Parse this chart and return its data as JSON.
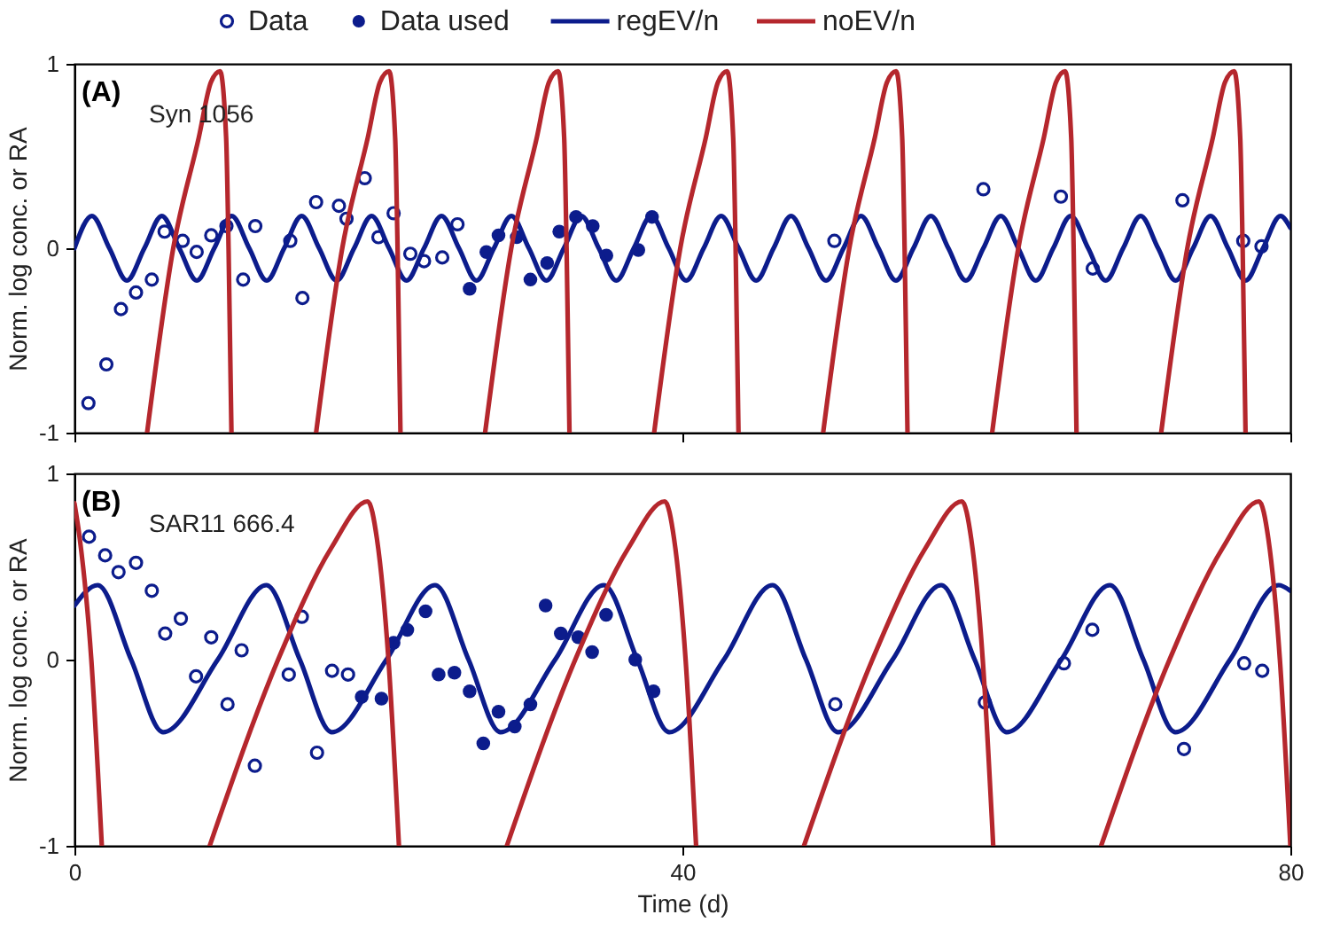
{
  "chart_data": [
    {
      "type": "line",
      "ylabel": "Norm. log conc. or RA",
      "annotations": [
        "(A)",
        "Syn 1056"
      ],
      "xlim": [
        0,
        80
      ],
      "ylim": [
        -1,
        1
      ],
      "xticks": [
        0,
        40,
        80
      ],
      "yticks": [
        -1,
        0,
        1
      ],
      "tick_labels": "y",
      "legend": "top",
      "series": [
        {
          "name": "Data",
          "type": "scatter",
          "marker": "circle",
          "color": "#0c1c8c",
          "x": [
            0.92,
            2.1,
            3.06,
            4.05,
            5.09,
            5.93,
            7.12,
            8.04,
            9.0,
            10.0,
            11.1,
            11.9,
            14.2,
            15.0,
            15.9,
            17.4,
            17.9,
            19.1,
            20.0,
            21.0,
            22.1,
            23.0,
            24.2,
            25.2,
            50.0,
            59.8,
            64.9,
            67.0,
            72.9,
            76.9,
            78.1
          ],
          "values": [
            -0.84,
            -0.63,
            -0.33,
            -0.24,
            -0.17,
            0.09,
            0.04,
            -0.02,
            0.07,
            0.12,
            -0.17,
            0.12,
            0.04,
            -0.27,
            0.25,
            0.23,
            0.16,
            0.38,
            0.06,
            0.19,
            -0.03,
            -0.07,
            -0.05,
            0.13,
            0.04,
            0.32,
            0.28,
            -0.11,
            0.26,
            0.04,
            0.01
          ]
        },
        {
          "name": "Data used",
          "type": "scatter",
          "marker": "circle",
          "color": "#0c1c8c",
          "x": [
            26.0,
            27.1,
            27.9,
            29.1,
            30.0,
            31.1,
            31.9,
            33.0,
            34.1,
            35.0,
            37.1,
            38.0
          ],
          "values": [
            -0.22,
            -0.02,
            0.07,
            0.06,
            -0.17,
            -0.08,
            0.09,
            0.17,
            0.12,
            -0.04,
            -0.01,
            0.17
          ]
        },
        {
          "name": "regEV/n",
          "color": "#0c1c8c",
          "x": [
            0,
            1.15,
            2.3,
            3.45,
            4.6,
            5.75,
            6.9,
            8.05,
            9.2,
            10.35,
            11.5,
            12.65,
            13.8,
            14.95,
            16.1,
            17.25,
            18.4,
            19.55,
            20.7,
            21.85,
            23,
            24.15,
            25.3,
            26.45,
            27.6,
            28.75,
            29.9,
            31.05,
            32.2,
            33.35,
            34.5,
            35.65,
            36.8,
            37.95,
            39.1,
            40.25,
            41.4,
            42.55,
            43.7,
            44.85,
            46,
            47.15,
            48.3,
            49.45,
            50.6,
            51.75,
            52.9,
            54.05,
            55.2,
            56.35,
            57.5,
            58.65,
            59.8,
            60.95,
            62.1,
            63.25,
            64.4,
            65.55,
            66.7,
            67.85,
            69,
            70.15,
            71.3,
            72.45,
            73.6,
            74.75,
            75.9,
            77.05,
            78.2,
            79.35,
            80
          ],
          "values": [
            0,
            0.175,
            0,
            -0.175,
            0,
            0.175,
            0,
            -0.175,
            0,
            0.175,
            0,
            -0.175,
            0,
            0.175,
            0,
            -0.175,
            0,
            0.175,
            0,
            -0.175,
            0,
            0.175,
            0,
            -0.175,
            0,
            0.175,
            0,
            -0.175,
            0,
            0.175,
            0,
            -0.175,
            0,
            0.175,
            0,
            -0.175,
            0,
            0.175,
            0,
            -0.175,
            0,
            0.175,
            0,
            -0.175,
            0,
            0.175,
            0,
            -0.175,
            0,
            0.175,
            0,
            -0.175,
            0,
            0.175,
            0,
            -0.175,
            0,
            0.175,
            0,
            -0.175,
            0,
            0.175,
            0,
            -0.175,
            0,
            0.175,
            0,
            -0.175,
            0,
            0.175,
            0.11
          ]
        },
        {
          "name": "noEV/n",
          "color": "#b5272d",
          "x": [
            4.78,
            6.5,
            8.18,
            8.98,
            9.58,
            9.98,
            10.14,
            10.33,
            13,
            15.9,
            17.62,
            19.3,
            20.1,
            20.7,
            21.1,
            21.26,
            21.45,
            24,
            27.02,
            28.74,
            30.42,
            31.22,
            31.82,
            32.22,
            32.38,
            32.57,
            35,
            38.14,
            39.86,
            41.54,
            42.34,
            42.94,
            43.34,
            43.5,
            43.69,
            46,
            49.26,
            50.98,
            52.66,
            53.46,
            54.06,
            54.46,
            54.62,
            54.81,
            57,
            60.38,
            62.1,
            63.78,
            64.58,
            65.18,
            65.58,
            65.74,
            65.93,
            68,
            71.5,
            73.22,
            74.9,
            75.7,
            76.3,
            76.7,
            76.86,
            77.05
          ],
          "values": [
            -1,
            0,
            0.6,
            0.9,
            0.96,
            0.6,
            0,
            -1,
            null,
            -1,
            0,
            0.6,
            0.9,
            0.96,
            0.6,
            0,
            -1,
            null,
            -1,
            0,
            0.6,
            0.9,
            0.96,
            0.6,
            0,
            -1,
            null,
            -1,
            0,
            0.6,
            0.9,
            0.96,
            0.6,
            0,
            -1,
            null,
            -1,
            0,
            0.6,
            0.9,
            0.96,
            0.6,
            0,
            -1,
            null,
            -1,
            0,
            0.6,
            0.9,
            0.96,
            0.6,
            0,
            -1,
            null,
            -1,
            0,
            0.6,
            0.9,
            0.96,
            0.6,
            0,
            -1
          ]
        }
      ]
    },
    {
      "type": "line",
      "xlabel": "Time (d)",
      "ylabel": "Norm. log conc. or RA",
      "annotations": [
        "(B)",
        "SAR11 666.4"
      ],
      "xlim": [
        0,
        80
      ],
      "ylim": [
        -1,
        1
      ],
      "xticks": [
        0,
        40,
        80
      ],
      "yticks": [
        -1,
        0,
        1
      ],
      "series": [
        {
          "name": "Data",
          "type": "scatter",
          "marker": "circle",
          "color": "#0c1c8c",
          "x": [
            0.96,
            2.02,
            2.9,
            4.05,
            5.09,
            5.97,
            7.0,
            8.0,
            9.0,
            10.07,
            11.0,
            11.87,
            14.1,
            14.96,
            15.96,
            16.95,
            18.0,
            50.06,
            59.9,
            65.1,
            66.97,
            73.0,
            76.96,
            78.15
          ],
          "values": [
            0.66,
            0.56,
            0.47,
            0.52,
            0.37,
            0.14,
            0.22,
            -0.09,
            0.12,
            -0.24,
            0.05,
            -0.57,
            -0.08,
            0.23,
            -0.5,
            -0.06,
            -0.08,
            -0.24,
            -0.23,
            -0.02,
            0.16,
            -0.48,
            -0.02,
            -0.06
          ]
        },
        {
          "name": "Data used",
          "type": "scatter",
          "marker": "circle",
          "color": "#0c1c8c",
          "x": [
            18.9,
            20.2,
            21.0,
            21.9,
            23.1,
            23.96,
            25.0,
            26.0,
            26.9,
            27.9,
            28.97,
            30.0,
            31.0,
            32.0,
            33.15,
            34.06,
            34.98,
            36.9,
            38.1
          ],
          "values": [
            -0.2,
            -0.21,
            0.09,
            0.16,
            0.26,
            -0.08,
            -0.07,
            -0.17,
            -0.45,
            -0.28,
            -0.36,
            -0.24,
            0.29,
            0.14,
            0.12,
            0.04,
            0.24,
            0.0,
            -0.17
          ]
        },
        {
          "name": "regEV/n",
          "color": "#0c1c8c",
          "x": [
            0,
            1.53,
            3.73,
            5.83,
            9.43,
            12.63,
            14.83,
            16.93,
            20.53,
            23.73,
            25.93,
            28.03,
            31.63,
            34.83,
            37.03,
            39.13,
            42.73,
            45.93,
            48.13,
            50.23,
            53.83,
            57.03,
            59.23,
            61.33,
            64.93,
            68.13,
            70.33,
            72.43,
            76.03,
            79.23,
            80
          ],
          "values": [
            0.29,
            0.4,
            0,
            -0.39,
            0,
            0.4,
            0,
            -0.39,
            0,
            0.4,
            0,
            -0.39,
            0,
            0.4,
            0,
            -0.39,
            0,
            0.4,
            0,
            -0.39,
            0,
            0.4,
            0,
            -0.39,
            0,
            0.4,
            0,
            -0.39,
            0,
            0.4,
            0.37
          ]
        },
        {
          "name": "noEV/n",
          "color": "#b5272d",
          "x": [
            0,
            0.35,
            1.11,
            1.8,
            5,
            8.9,
            13.4,
            16.9,
            19.3,
            19.9,
            20.66,
            21.35,
            25,
            28.45,
            32.95,
            36.45,
            38.85,
            39.45,
            40.21,
            40.9,
            45,
            48,
            52.5,
            56,
            58.4,
            59,
            59.76,
            60.45,
            64,
            67.55,
            72.05,
            75.55,
            77.95,
            78.55,
            79.31,
            80
          ],
          "values": [
            0.84,
            0.65,
            0,
            -1,
            null,
            -1,
            0,
            0.6,
            0.85,
            0.65,
            0,
            -1,
            null,
            -1,
            0,
            0.6,
            0.85,
            0.65,
            0,
            -1,
            null,
            -1,
            0,
            0.6,
            0.85,
            0.65,
            0,
            -1,
            null,
            -1,
            0,
            0.6,
            0.85,
            0.65,
            0,
            -1
          ]
        }
      ]
    }
  ]
}
